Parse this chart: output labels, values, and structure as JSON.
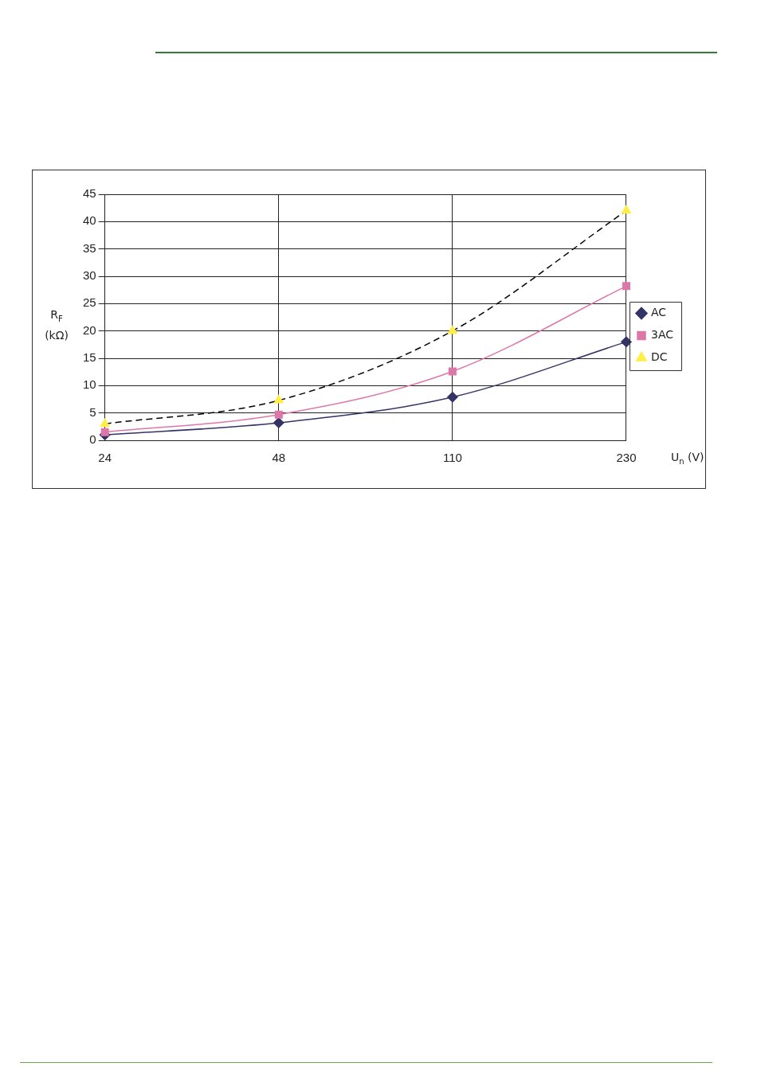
{
  "chart_data": {
    "type": "line",
    "xlabel": "U$_{n}$ (V)",
    "ylabel": "R$_{F}$ (kΩ)",
    "categories": [
      "24",
      "48",
      "110",
      "230"
    ],
    "series": [
      {
        "name": "AC",
        "color": "#333366",
        "values": [
          1,
          3.2,
          7.9,
          18
        ],
        "marker": "diamond",
        "line_style": "solid"
      },
      {
        "name": "3AC",
        "color": "#dd77aa",
        "values": [
          1.5,
          4.7,
          12.6,
          28.2
        ],
        "marker": "square",
        "line_style": "solid"
      },
      {
        "name": "DC",
        "color": "#000000",
        "colors": [
          "#ffee44",
          "#ffee44",
          "#ffee44",
          "#ffee44"
        ],
        "values": [
          3,
          7.3,
          20,
          42
        ],
        "marker": "triangle",
        "line_style": "dashed"
      }
    ],
    "ylim": [
      0,
      45
    ],
    "yticks": [
      0,
      5,
      10,
      15,
      20,
      25,
      30,
      35,
      40,
      45
    ],
    "grid": true,
    "legend": "right"
  }
}
